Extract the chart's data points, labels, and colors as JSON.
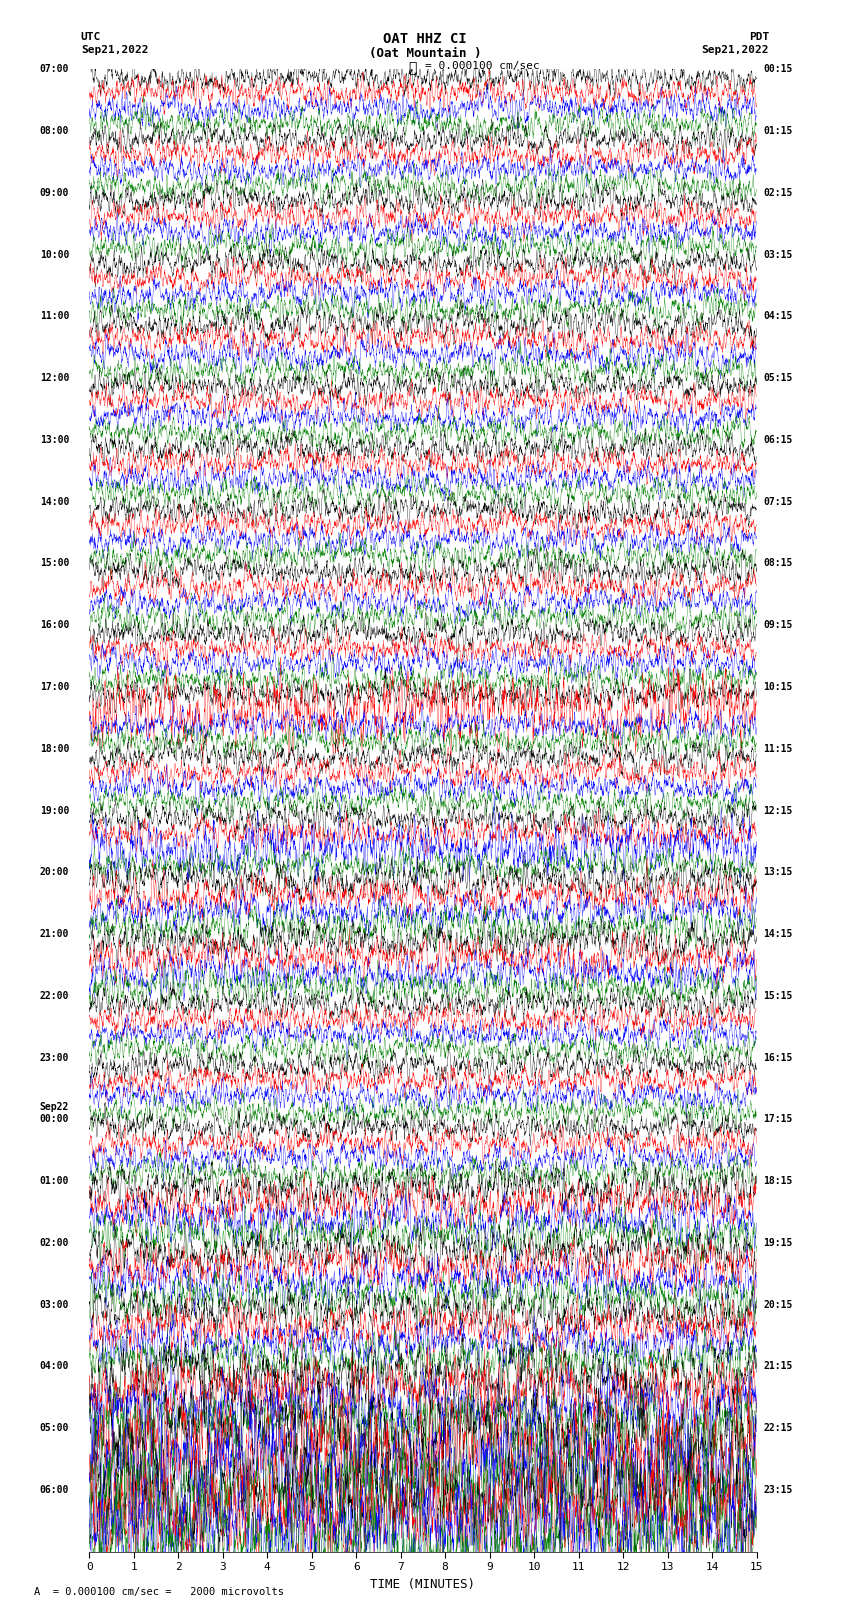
{
  "title_line1": "OAT HHZ CI",
  "title_line2": "(Oat Mountain )",
  "scale_bar_label": "= 0.000100 cm/sec",
  "bottom_label": "A  = 0.000100 cm/sec =   2000 microvolts",
  "xlabel": "TIME (MINUTES)",
  "left_header": "UTC",
  "left_date": "Sep21,2022",
  "right_header": "PDT",
  "right_date": "Sep21,2022",
  "utc_times": [
    "07:00",
    "08:00",
    "09:00",
    "10:00",
    "11:00",
    "12:00",
    "13:00",
    "14:00",
    "15:00",
    "16:00",
    "17:00",
    "18:00",
    "19:00",
    "20:00",
    "21:00",
    "22:00",
    "23:00",
    "00:00",
    "01:00",
    "02:00",
    "03:00",
    "04:00",
    "05:00",
    "06:00"
  ],
  "utc_date_change_index": 17,
  "utc_date_change_label": "Sep22",
  "pdt_times": [
    "00:15",
    "01:15",
    "02:15",
    "03:15",
    "04:15",
    "05:15",
    "06:15",
    "07:15",
    "08:15",
    "09:15",
    "10:15",
    "11:15",
    "12:15",
    "13:15",
    "14:15",
    "15:15",
    "16:15",
    "17:15",
    "18:15",
    "19:15",
    "20:15",
    "21:15",
    "22:15",
    "23:15"
  ],
  "colors": [
    "black",
    "red",
    "blue",
    "green"
  ],
  "n_rows": 24,
  "n_traces_per_row": 4,
  "xmin": 0,
  "xmax": 15,
  "xticks": [
    0,
    1,
    2,
    3,
    4,
    5,
    6,
    7,
    8,
    9,
    10,
    11,
    12,
    13,
    14,
    15
  ],
  "fig_width": 8.5,
  "fig_height": 16.13,
  "dpi": 100,
  "bg_color": "white",
  "trace_amplitude": 0.38,
  "seed": 42,
  "n_pts": 3000,
  "linewidth": 0.25
}
